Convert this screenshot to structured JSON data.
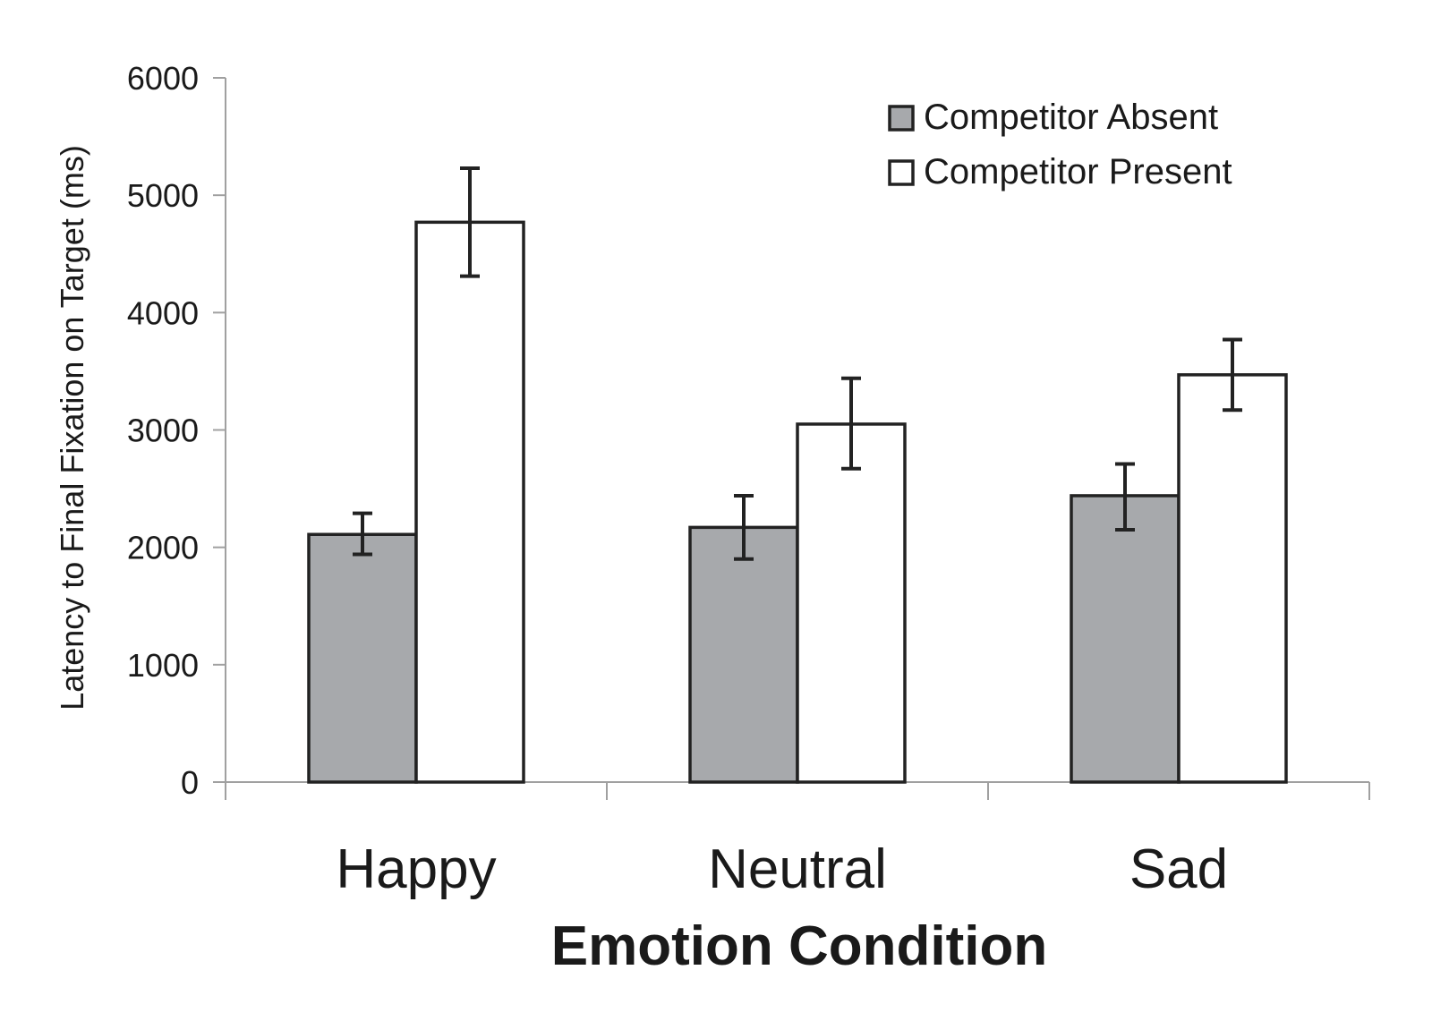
{
  "chart_data": {
    "type": "bar",
    "title": "",
    "xlabel": "Emotion Condition",
    "ylabel": "Latency to Final Fixation on Target (ms)",
    "categories": [
      "Happy",
      "Neutral",
      "Sad"
    ],
    "ylim": [
      0,
      6000
    ],
    "yticks": [
      0,
      1000,
      2000,
      3000,
      4000,
      5000,
      6000
    ],
    "ytick_labels": [
      "0",
      "1000",
      "2000",
      "3000",
      "4000",
      "5000",
      "6000"
    ],
    "grid": false,
    "legend_position": "top-right",
    "series": [
      {
        "name": "Competitor Absent",
        "color": "#a7a9ac",
        "values": [
          2110,
          2170,
          2440
        ],
        "error_low": [
          1940,
          1900,
          2150
        ],
        "error_high": [
          2290,
          2440,
          2710
        ]
      },
      {
        "name": "Competitor Present",
        "color": "#ffffff",
        "values": [
          4770,
          3050,
          3470
        ],
        "error_low": [
          4310,
          2670,
          3170
        ],
        "error_high": [
          5230,
          3440,
          3770
        ]
      }
    ]
  }
}
